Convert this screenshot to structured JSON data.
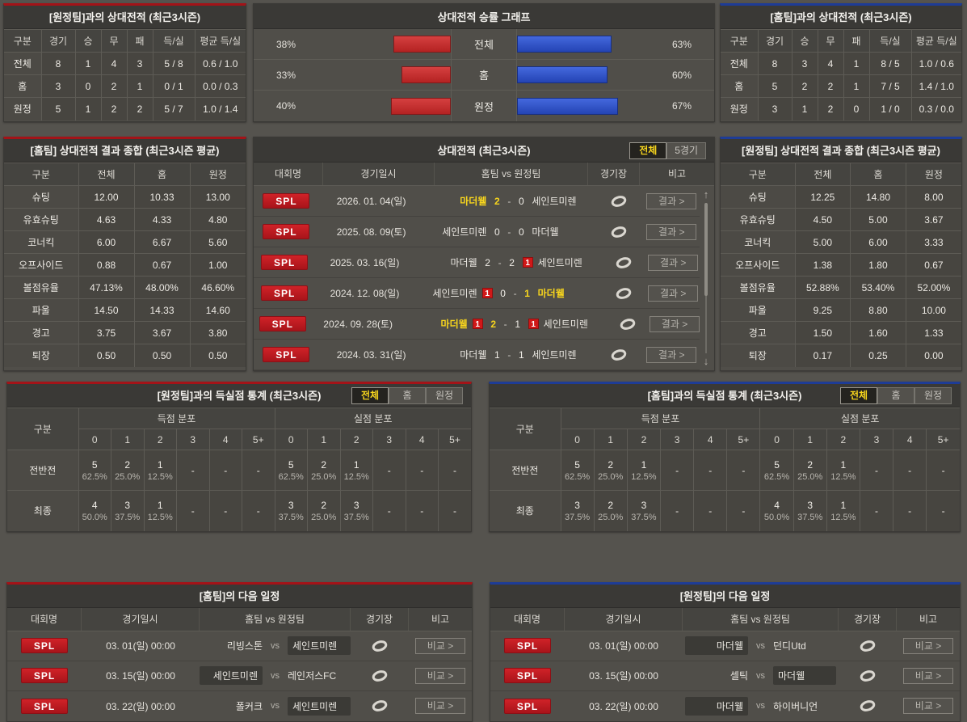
{
  "colors": {
    "red_accent": "#a31318",
    "blue_accent": "#1e3c96",
    "red_bar": "#c22727",
    "blue_bar": "#2e51c4",
    "highlight_yellow": "#f7d51d",
    "league_badge_red": "#c11b21"
  },
  "vs_table_away": {
    "title": "[원정팀]과의 상대전적 (최근3시즌)",
    "headers": [
      "구분",
      "경기",
      "승",
      "무",
      "패",
      "득/실",
      "평균 득/실"
    ],
    "rows": [
      [
        "전체",
        "8",
        "1",
        "4",
        "3",
        "5 / 8",
        "0.6 / 1.0"
      ],
      [
        "홈",
        "3",
        "0",
        "2",
        "1",
        "0 / 1",
        "0.0 / 0.3"
      ],
      [
        "원정",
        "5",
        "1",
        "2",
        "2",
        "5 / 7",
        "1.0 / 1.4"
      ]
    ]
  },
  "win_rate_chart": {
    "title": "상대전적 승률 그래프",
    "type": "bar",
    "rows": [
      {
        "label": "전체",
        "left_pct": "38%",
        "left_val": 38,
        "right_pct": "63%",
        "right_val": 63
      },
      {
        "label": "홈",
        "left_pct": "33%",
        "left_val": 33,
        "right_pct": "60%",
        "right_val": 60
      },
      {
        "label": "원정",
        "left_pct": "40%",
        "left_val": 40,
        "right_pct": "67%",
        "right_val": 67
      }
    ]
  },
  "vs_table_home": {
    "title": "[홈팀]과의 상대전적 (최근3시즌)",
    "headers": [
      "구분",
      "경기",
      "승",
      "무",
      "패",
      "득/실",
      "평균 득/실"
    ],
    "rows": [
      [
        "전체",
        "8",
        "3",
        "4",
        "1",
        "8 / 5",
        "1.0 / 0.6"
      ],
      [
        "홈",
        "5",
        "2",
        "2",
        "1",
        "7 / 5",
        "1.4 / 1.0"
      ],
      [
        "원정",
        "3",
        "1",
        "2",
        "0",
        "1 / 0",
        "0.3 / 0.0"
      ]
    ]
  },
  "summary_home": {
    "title": "[홈팀] 상대전적 결과 종합 (최근3시즌 평균)",
    "headers": [
      "구분",
      "전체",
      "홈",
      "원정"
    ],
    "rows": [
      [
        "슈팅",
        "12.00",
        "10.33",
        "13.00"
      ],
      [
        "유효슈팅",
        "4.63",
        "4.33",
        "4.80"
      ],
      [
        "코너킥",
        "6.00",
        "6.67",
        "5.60"
      ],
      [
        "오프사이드",
        "0.88",
        "0.67",
        "1.00"
      ],
      [
        "볼점유율",
        "47.13%",
        "48.00%",
        "46.60%"
      ],
      [
        "파울",
        "14.50",
        "14.33",
        "14.60"
      ],
      [
        "경고",
        "3.75",
        "3.67",
        "3.80"
      ],
      [
        "퇴장",
        "0.50",
        "0.50",
        "0.50"
      ]
    ]
  },
  "summary_away": {
    "title": "[원정팀] 상대전적 결과 종합 (최근3시즌 평균)",
    "headers": [
      "구분",
      "전체",
      "홈",
      "원정"
    ],
    "rows": [
      [
        "슈팅",
        "12.25",
        "14.80",
        "8.00"
      ],
      [
        "유효슈팅",
        "4.50",
        "5.00",
        "3.67"
      ],
      [
        "코너킥",
        "5.00",
        "6.00",
        "3.33"
      ],
      [
        "오프사이드",
        "1.38",
        "1.80",
        "0.67"
      ],
      [
        "볼점유율",
        "52.88%",
        "53.40%",
        "52.00%"
      ],
      [
        "파울",
        "9.25",
        "8.80",
        "10.00"
      ],
      [
        "경고",
        "1.50",
        "1.60",
        "1.33"
      ],
      [
        "퇴장",
        "0.17",
        "0.25",
        "0.00"
      ]
    ]
  },
  "h2h": {
    "title": "상대전적 (최근3시즌)",
    "tabs": [
      "전체",
      "5경기"
    ],
    "headers": {
      "league": "대회명",
      "date": "경기일시",
      "teams": "홈팀  vs  원정팀",
      "stadium": "경기장",
      "note": "비고"
    },
    "result_label": "결과 >",
    "sep": "-",
    "rows": [
      {
        "league": "SPL",
        "date": "2026. 01. 04(일)",
        "home": "마더웰",
        "score_home": "2",
        "score_away": "0",
        "away": "세인트미렌"
      },
      {
        "league": "SPL",
        "date": "2025. 08. 09(토)",
        "home": "세인트미렌",
        "score_home": "0",
        "score_away": "0",
        "away": "마더웰"
      },
      {
        "league": "SPL",
        "date": "2025. 03. 16(일)",
        "home": "마더웰",
        "score_home": "2",
        "score_away": "2",
        "away_card": "1",
        "away": "세인트미렌"
      },
      {
        "league": "SPL",
        "date": "2024. 12. 08(일)",
        "home": "세인트미렌",
        "home_card": "1",
        "score_home": "0",
        "score_away": "1",
        "away": "마더웰"
      },
      {
        "league": "SPL",
        "date": "2024. 09. 28(토)",
        "home": "마더웰",
        "home_card": "1",
        "score_home": "2",
        "score_away": "1",
        "away_card": "1",
        "away": "세인트미렌"
      },
      {
        "league": "SPL",
        "date": "2024. 03. 31(일)",
        "home": "마더웰",
        "score_home": "1",
        "score_away": "1",
        "away": "세인트미렌"
      }
    ]
  },
  "goal_stats_away_opp": {
    "title": "[원정팀]과의 득실점 통계 (최근3시즌)",
    "tabs": [
      "전체",
      "홈",
      "원정"
    ],
    "col_label": "구분",
    "scored_label": "득점 분포",
    "conceded_label": "실점 분포",
    "bins": [
      "0",
      "1",
      "2",
      "3",
      "4",
      "5+"
    ],
    "rows": [
      {
        "label": "전반전",
        "scored": [
          [
            "5",
            "62.5%"
          ],
          [
            "2",
            "25.0%"
          ],
          [
            "1",
            "12.5%"
          ],
          [
            "-",
            ""
          ],
          [
            "-",
            ""
          ],
          [
            "-",
            ""
          ]
        ],
        "conceded": [
          [
            "5",
            "62.5%"
          ],
          [
            "2",
            "25.0%"
          ],
          [
            "1",
            "12.5%"
          ],
          [
            "-",
            ""
          ],
          [
            "-",
            ""
          ],
          [
            "-",
            ""
          ]
        ]
      },
      {
        "label": "최종",
        "scored": [
          [
            "4",
            "50.0%"
          ],
          [
            "3",
            "37.5%"
          ],
          [
            "1",
            "12.5%"
          ],
          [
            "-",
            ""
          ],
          [
            "-",
            ""
          ],
          [
            "-",
            ""
          ]
        ],
        "conceded": [
          [
            "3",
            "37.5%"
          ],
          [
            "2",
            "25.0%"
          ],
          [
            "3",
            "37.5%"
          ],
          [
            "-",
            ""
          ],
          [
            "-",
            ""
          ],
          [
            "-",
            ""
          ]
        ]
      }
    ]
  },
  "goal_stats_home_opp": {
    "title": "[홈팀]과의 득실점 통계 (최근3시즌)",
    "tabs": [
      "전체",
      "홈",
      "원정"
    ],
    "col_label": "구분",
    "scored_label": "득점 분포",
    "conceded_label": "실점 분포",
    "bins": [
      "0",
      "1",
      "2",
      "3",
      "4",
      "5+"
    ],
    "rows": [
      {
        "label": "전반전",
        "scored": [
          [
            "5",
            "62.5%"
          ],
          [
            "2",
            "25.0%"
          ],
          [
            "1",
            "12.5%"
          ],
          [
            "-",
            ""
          ],
          [
            "-",
            ""
          ],
          [
            "-",
            ""
          ]
        ],
        "conceded": [
          [
            "5",
            "62.5%"
          ],
          [
            "2",
            "25.0%"
          ],
          [
            "1",
            "12.5%"
          ],
          [
            "-",
            ""
          ],
          [
            "-",
            ""
          ],
          [
            "-",
            ""
          ]
        ]
      },
      {
        "label": "최종",
        "scored": [
          [
            "3",
            "37.5%"
          ],
          [
            "2",
            "25.0%"
          ],
          [
            "3",
            "37.5%"
          ],
          [
            "-",
            ""
          ],
          [
            "-",
            ""
          ],
          [
            "-",
            ""
          ]
        ],
        "conceded": [
          [
            "4",
            "50.0%"
          ],
          [
            "3",
            "37.5%"
          ],
          [
            "1",
            "12.5%"
          ],
          [
            "-",
            ""
          ],
          [
            "-",
            ""
          ],
          [
            "-",
            ""
          ]
        ]
      }
    ]
  },
  "schedule_home": {
    "title": "[홈팀]의 다음 일정",
    "headers": {
      "league": "대회명",
      "date": "경기일시",
      "teams": "홈팀  vs  원정팀",
      "stadium": "경기장",
      "note": "비고"
    },
    "note_label": "비교 >",
    "vs_label": "vs",
    "rows": [
      {
        "league": "SPL",
        "date": "03. 01(일) 00:00",
        "home": "리빙스톤",
        "away": "세인트미렌",
        "highlight": "away"
      },
      {
        "league": "SPL",
        "date": "03. 15(일) 00:00",
        "home": "세인트미렌",
        "away": "레인저스FC",
        "highlight": "home"
      },
      {
        "league": "SPL",
        "date": "03. 22(일) 00:00",
        "home": "폴커크",
        "away": "세인트미렌",
        "highlight": "away"
      }
    ]
  },
  "schedule_away": {
    "title": "[원정팀]의 다음 일정",
    "headers": {
      "league": "대회명",
      "date": "경기일시",
      "teams": "홈팀  vs  원정팀",
      "stadium": "경기장",
      "note": "비고"
    },
    "note_label": "비교 >",
    "vs_label": "vs",
    "rows": [
      {
        "league": "SPL",
        "date": "03. 01(일) 00:00",
        "home": "마더웰",
        "away": "던디Utd",
        "highlight": "home"
      },
      {
        "league": "SPL",
        "date": "03. 15(일) 00:00",
        "home": "셀틱",
        "away": "마더웰",
        "highlight": "away"
      },
      {
        "league": "SPL",
        "date": "03. 22(일) 00:00",
        "home": "마더웰",
        "away": "하이버니언",
        "highlight": "home"
      }
    ]
  }
}
